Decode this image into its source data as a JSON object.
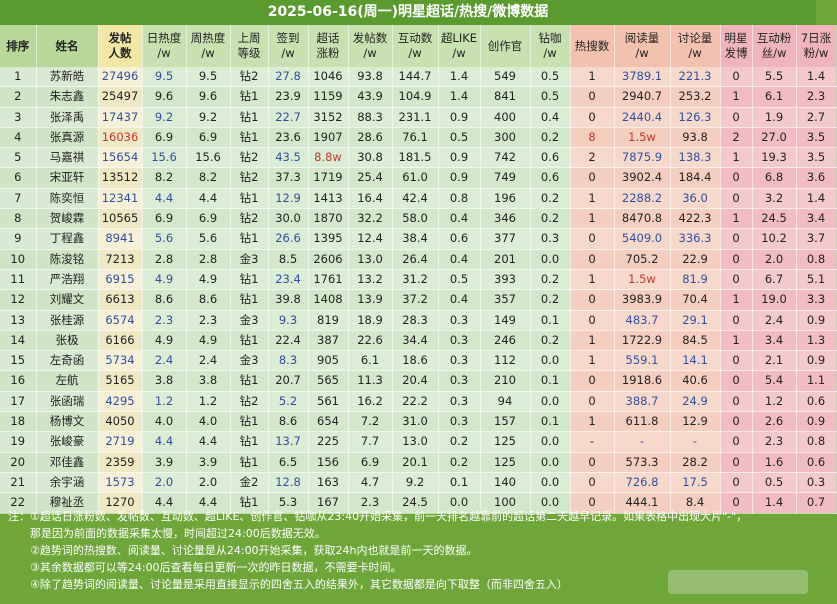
{
  "title": "2025-06-16(周一)明星超话/热搜/微博数据",
  "headers": [
    "排序",
    "姓名",
    "发帖\n人数",
    "日热度\n/w",
    "周热度\n/w",
    "上周\n等级",
    "签到\n/w",
    "超话\n涨粉",
    "发帖数\n/w",
    "互动数\n/w",
    "超LIKE\n/w",
    "创作官",
    "钻咖\n/w",
    "热搜数",
    "阅读量\n/w",
    "讨论量\n/w",
    "明星\n发博",
    "互动粉\n丝/w",
    "7日涨\n粉/w"
  ],
  "rows": [
    [
      "1",
      "苏新皓",
      "27496",
      "9.5",
      "9.5",
      "钻2",
      "27.8",
      "1046",
      "93.8",
      "144.7",
      "1.4",
      "549",
      "0.5",
      "1",
      "3789.1",
      "221.3",
      "0",
      "5.5",
      "1.4"
    ],
    [
      "2",
      "朱志鑫",
      "25497",
      "9.6",
      "9.6",
      "钻1",
      "23.9",
      "1159",
      "43.9",
      "104.9",
      "1.4",
      "841",
      "0.5",
      "0",
      "2940.7",
      "253.2",
      "1",
      "6.1",
      "2.3"
    ],
    [
      "3",
      "张泽禹",
      "17437",
      "9.2",
      "9.2",
      "钻1",
      "22.7",
      "3152",
      "88.3",
      "231.1",
      "0.9",
      "400",
      "0.4",
      "0",
      "2440.4",
      "126.3",
      "0",
      "1.9",
      "2.7"
    ],
    [
      "4",
      "张真源",
      "16036",
      "6.9",
      "6.9",
      "钻1",
      "23.6",
      "1907",
      "28.6",
      "76.1",
      "0.5",
      "300",
      "0.2",
      "8",
      "1.5w",
      "93.8",
      "2",
      "27.0",
      "3.5"
    ],
    [
      "5",
      "马嘉祺",
      "15654",
      "15.6",
      "15.6",
      "钻2",
      "43.5",
      "8.8w",
      "30.8",
      "181.5",
      "0.9",
      "742",
      "0.6",
      "2",
      "7875.9",
      "138.3",
      "1",
      "19.3",
      "3.5"
    ],
    [
      "6",
      "宋亚轩",
      "13512",
      "8.2",
      "8.2",
      "钻2",
      "37.3",
      "1719",
      "25.4",
      "61.0",
      "0.9",
      "749",
      "0.6",
      "0",
      "3902.4",
      "184.4",
      "0",
      "6.8",
      "3.6"
    ],
    [
      "7",
      "陈奕恒",
      "12341",
      "4.4",
      "4.4",
      "钻1",
      "12.9",
      "1413",
      "16.4",
      "42.4",
      "0.8",
      "196",
      "0.2",
      "1",
      "2288.2",
      "36.0",
      "0",
      "3.2",
      "1.4"
    ],
    [
      "8",
      "贺峻霖",
      "10565",
      "6.9",
      "6.9",
      "钻2",
      "30.0",
      "1870",
      "32.2",
      "58.0",
      "0.4",
      "346",
      "0.2",
      "1",
      "8470.8",
      "422.3",
      "1",
      "24.5",
      "3.4"
    ],
    [
      "9",
      "丁程鑫",
      "8941",
      "5.6",
      "5.6",
      "钻1",
      "26.6",
      "1395",
      "12.4",
      "38.4",
      "0.6",
      "377",
      "0.3",
      "0",
      "5409.0",
      "336.3",
      "0",
      "10.2",
      "3.7"
    ],
    [
      "10",
      "陈浚铭",
      "7213",
      "2.8",
      "2.8",
      "金3",
      "8.5",
      "2606",
      "13.0",
      "26.4",
      "0.4",
      "201",
      "0.0",
      "0",
      "705.2",
      "22.9",
      "0",
      "2.0",
      "0.8"
    ],
    [
      "11",
      "严浩翔",
      "6915",
      "4.9",
      "4.9",
      "钻1",
      "23.4",
      "1761",
      "13.2",
      "31.2",
      "0.5",
      "393",
      "0.2",
      "1",
      "1.5w",
      "81.9",
      "0",
      "6.7",
      "5.1"
    ],
    [
      "12",
      "刘耀文",
      "6613",
      "8.6",
      "8.6",
      "钻1",
      "39.8",
      "1408",
      "13.9",
      "37.2",
      "0.4",
      "357",
      "0.2",
      "0",
      "3983.9",
      "70.4",
      "1",
      "19.0",
      "3.3"
    ],
    [
      "13",
      "张桂源",
      "6574",
      "2.3",
      "2.3",
      "金3",
      "9.3",
      "819",
      "18.9",
      "28.3",
      "0.3",
      "149",
      "0.1",
      "0",
      "483.7",
      "29.1",
      "0",
      "2.4",
      "0.9"
    ],
    [
      "14",
      "张极",
      "6166",
      "4.9",
      "4.9",
      "钻1",
      "22.4",
      "387",
      "22.6",
      "34.4",
      "0.3",
      "246",
      "0.2",
      "1",
      "1722.9",
      "84.5",
      "1",
      "3.4",
      "1.3"
    ],
    [
      "15",
      "左奇函",
      "5734",
      "2.4",
      "2.4",
      "金3",
      "8.3",
      "905",
      "6.1",
      "18.6",
      "0.3",
      "112",
      "0.0",
      "1",
      "559.1",
      "14.1",
      "0",
      "2.1",
      "0.9"
    ],
    [
      "16",
      "左航",
      "5165",
      "3.8",
      "3.8",
      "钻1",
      "20.7",
      "565",
      "11.3",
      "20.4",
      "0.3",
      "210",
      "0.1",
      "0",
      "1918.6",
      "40.6",
      "0",
      "5.4",
      "1.1"
    ],
    [
      "17",
      "张函瑞",
      "4295",
      "1.2",
      "1.2",
      "钻2",
      "5.2",
      "561",
      "16.2",
      "22.2",
      "0.3",
      "94",
      "0.0",
      "0",
      "388.7",
      "24.9",
      "0",
      "1.2",
      "0.6"
    ],
    [
      "18",
      "杨博文",
      "4050",
      "4.0",
      "4.0",
      "钻1",
      "8.6",
      "654",
      "7.2",
      "31.0",
      "0.3",
      "157",
      "0.1",
      "1",
      "611.8",
      "12.9",
      "0",
      "2.6",
      "0.9"
    ],
    [
      "19",
      "张峻豪",
      "2719",
      "4.4",
      "4.4",
      "钻1",
      "13.7",
      "225",
      "7.7",
      "13.0",
      "0.2",
      "125",
      "0.0",
      "-",
      "-",
      "-",
      "0",
      "2.3",
      "0.8"
    ],
    [
      "20",
      "邓佳鑫",
      "2359",
      "3.9",
      "3.9",
      "钻1",
      "6.5",
      "156",
      "6.9",
      "20.1",
      "0.2",
      "125",
      "0.0",
      "0",
      "573.3",
      "28.2",
      "0",
      "1.6",
      "0.6"
    ],
    [
      "21",
      "余宇涵",
      "1573",
      "2.0",
      "2.0",
      "金2",
      "12.8",
      "163",
      "4.7",
      "9.2",
      "0.1",
      "140",
      "0.0",
      "0",
      "726.8",
      "17.5",
      "0",
      "0.5",
      "0.3"
    ],
    [
      "22",
      "穆祉丞",
      "1270",
      "4.4",
      "4.4",
      "钻1",
      "5.3",
      "167",
      "2.3",
      "24.5",
      "0.0",
      "100",
      "0.0",
      "0",
      "444.1",
      "8.4",
      "0",
      "1.4",
      "0.7"
    ]
  ],
  "notes": [
    "注：①超话日涨粉数、发帖数、互动数、超LIKE、创作官、钻咖从23:40开始采集，前一天排名越靠前的超话第二天越早记录。如果表格中出现大片\"-\"，",
    "那是因为前面的数据采集太慢，时间超过24:00后数据无效。",
    "②趋势词的热搜数、阅读量、讨论量是从24:00开始采集，获取24h内也就是前一天的数据。",
    "③其余数据都可以等24:00后查看每日更新一次的昨日数据，不需要卡时间。",
    "④除了趋势词的阅读量、讨论量是采用直接显示的四舍五入的结果外，其它数据都是向下取整（而非四舍五入）"
  ]
}
